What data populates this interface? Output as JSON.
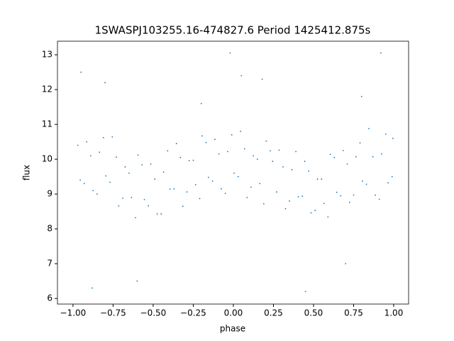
{
  "chart_data": {
    "type": "scatter",
    "title": "1SWASPJ103255.16-474827.6 Period 1425412.875s",
    "xlabel": "phase",
    "ylabel": "flux",
    "color": "#1f77b4",
    "xlim": [
      -1.097,
      1.093
    ],
    "ylim": [
      5.84,
      13.39
    ],
    "xticks": [
      {
        "value": -1,
        "label": "−1.00"
      },
      {
        "value": -0.75,
        "label": "−0.75"
      },
      {
        "value": -0.5,
        "label": "−0.50"
      },
      {
        "value": -0.25,
        "label": "−0.25"
      },
      {
        "value": 0,
        "label": "0.00"
      },
      {
        "value": 0.25,
        "label": "0.25"
      },
      {
        "value": 0.5,
        "label": "0.50"
      },
      {
        "value": 0.75,
        "label": "0.75"
      },
      {
        "value": 1,
        "label": "1.00"
      }
    ],
    "yticks": [
      6,
      7,
      8,
      9,
      10,
      11,
      12,
      13
    ],
    "x": [
      -0.97,
      -0.93,
      -0.89,
      -0.85,
      -0.81,
      -0.77,
      -0.73,
      -0.69,
      -0.65,
      -0.61,
      -0.57,
      -0.53,
      -0.49,
      -0.45,
      -0.41,
      -0.37,
      -0.33,
      -0.29,
      -0.25,
      -0.21,
      -0.17,
      -0.13,
      -0.09,
      -0.05,
      -0.01,
      0.03,
      0.07,
      0.11,
      0.15,
      0.19,
      0.23,
      0.27,
      0.31,
      0.35,
      0.39,
      0.43,
      0.47,
      0.51,
      0.55,
      0.59,
      0.63,
      0.67,
      0.71,
      0.75,
      0.79,
      0.83,
      0.87,
      0.91,
      0.95,
      0.99,
      -0.955,
      -0.915,
      -0.875,
      -0.835,
      -0.795,
      -0.755,
      -0.715,
      -0.675,
      -0.635,
      -0.595,
      -0.555,
      -0.515,
      -0.475,
      -0.435,
      -0.395,
      -0.355,
      -0.315,
      -0.275,
      -0.235,
      -0.195,
      -0.155,
      -0.115,
      -0.075,
      -0.035,
      0.005,
      0.045,
      0.085,
      0.125,
      0.165,
      0.205,
      0.245,
      0.285,
      0.325,
      0.365,
      0.405,
      0.445,
      0.485,
      0.525,
      0.565,
      0.605,
      0.645,
      0.685,
      0.725,
      0.765,
      0.805,
      0.845,
      0.885,
      0.925,
      0.965,
      0.995,
      -0.95,
      0.05,
      0.92,
      -0.02,
      -0.88,
      0.45,
      -0.6,
      0.7,
      -0.2,
      0.8,
      -0.8,
      0.18
    ],
    "values": [
      10.4,
      9.3,
      10.1,
      9.0,
      10.62,
      9.34,
      10.06,
      8.88,
      9.6,
      8.32,
      9.84,
      8.66,
      9.43,
      8.43,
      10.24,
      9.15,
      10.05,
      9.06,
      9.97,
      8.87,
      10.48,
      9.37,
      10.15,
      9.02,
      10.7,
      9.5,
      10.3,
      9.2,
      10.0,
      8.72,
      10.24,
      9.06,
      9.78,
      8.8,
      10.22,
      8.94,
      9.66,
      8.53,
      9.43,
      8.34,
      10.05,
      8.95,
      9.86,
      8.97,
      10.47,
      9.28,
      10.07,
      8.85,
      10.72,
      9.5,
      9.4,
      10.5,
      9.1,
      10.2,
      9.52,
      10.64,
      8.66,
      9.78,
      8.9,
      10.12,
      8.84,
      9.86,
      8.43,
      9.63,
      9.14,
      10.45,
      8.65,
      9.96,
      9.27,
      10.67,
      9.48,
      10.57,
      9.15,
      10.22,
      9.6,
      10.8,
      8.9,
      10.1,
      9.3,
      10.52,
      9.94,
      10.26,
      8.58,
      9.7,
      8.92,
      9.94,
      8.46,
      9.43,
      8.73,
      10.14,
      9.05,
      10.25,
      8.76,
      10.07,
      9.37,
      10.88,
      8.97,
      10.15,
      9.32,
      10.6,
      12.5,
      12.4,
      13.05,
      13.05,
      6.3,
      6.2,
      6.5,
      7.0,
      11.6,
      11.8,
      12.2,
      12.3
    ]
  }
}
